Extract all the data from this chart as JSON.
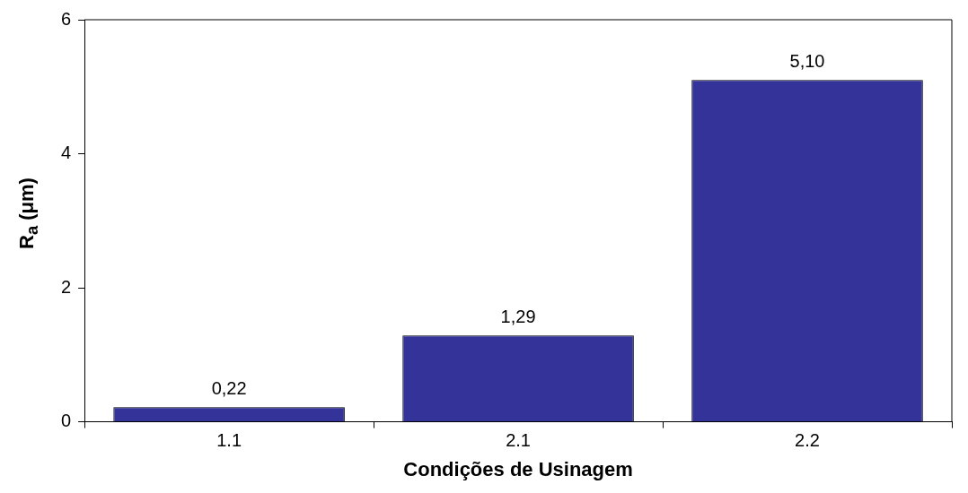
{
  "chart_data": {
    "type": "bar",
    "xlabel": "Condições de Usinagem",
    "ylabel": "R$_{a}$ (μm)",
    "categories": [
      "1.1",
      "2.1",
      "2.2"
    ],
    "values": [
      0.22,
      1.29,
      5.1
    ],
    "color": "#333399",
    "value_labels": [
      "0,22",
      "1,29",
      "5,10"
    ],
    "ylim": [
      0,
      6
    ],
    "yticks": [
      0,
      2,
      4,
      6
    ],
    "grid": false
  }
}
